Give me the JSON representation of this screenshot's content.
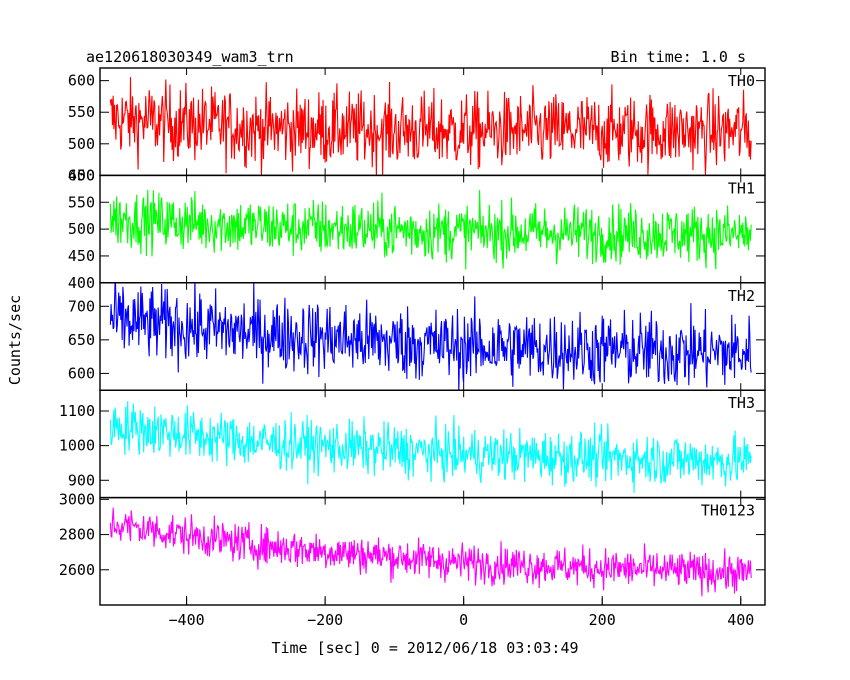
{
  "header": {
    "file_label": "ae120618030349_wam3_trn",
    "bin_time_label": "Bin time: 1.0 s"
  },
  "axes": {
    "ylabel": "Counts/sec",
    "xlabel": "Time [sec] 0 = 2012/06/18 03:03:49",
    "x_ticks": [
      -400,
      -200,
      0,
      200,
      400
    ],
    "x_tick_labels": [
      "−400",
      "−200",
      "0",
      "200",
      "400"
    ]
  },
  "chart_data": {
    "type": "line",
    "x_range": [
      -510,
      415
    ],
    "xlim": [
      -525,
      435
    ],
    "bin_time_s": 1.0,
    "panels": [
      {
        "name": "TH0",
        "color": "#ff0000",
        "ylim": [
          450,
          620
        ],
        "y_ticks": [
          450,
          500,
          550,
          600
        ],
        "noise": 30,
        "trend": [
          [
            -510,
            540
          ],
          [
            -300,
            525
          ],
          [
            0,
            520
          ],
          [
            415,
            520
          ]
        ]
      },
      {
        "name": "TH1",
        "color": "#00ff00",
        "ylim": [
          400,
          600
        ],
        "y_ticks": [
          400,
          450,
          500,
          550,
          600
        ],
        "noise": 27,
        "trend": [
          [
            -510,
            520
          ],
          [
            -300,
            505
          ],
          [
            0,
            495
          ],
          [
            415,
            490
          ]
        ]
      },
      {
        "name": "TH2",
        "color": "#0000ff",
        "ylim": [
          575,
          735
        ],
        "y_ticks": [
          600,
          650,
          700
        ],
        "noise": 28,
        "trend": [
          [
            -510,
            680
          ],
          [
            -300,
            660
          ],
          [
            0,
            640
          ],
          [
            415,
            630
          ]
        ]
      },
      {
        "name": "TH3",
        "color": "#00ffff",
        "ylim": [
          850,
          1160
        ],
        "y_ticks": [
          900,
          1000,
          1100
        ],
        "noise": 38,
        "trend": [
          [
            -510,
            1060
          ],
          [
            -300,
            1010
          ],
          [
            0,
            975
          ],
          [
            415,
            955
          ]
        ]
      },
      {
        "name": "TH0123",
        "color": "#ff00ff",
        "ylim": [
          2400,
          3010
        ],
        "y_ticks": [
          2600,
          2800,
          3000
        ],
        "noise": 55,
        "trend": [
          [
            -510,
            2860
          ],
          [
            -300,
            2740
          ],
          [
            0,
            2640
          ],
          [
            415,
            2580
          ]
        ]
      }
    ]
  }
}
